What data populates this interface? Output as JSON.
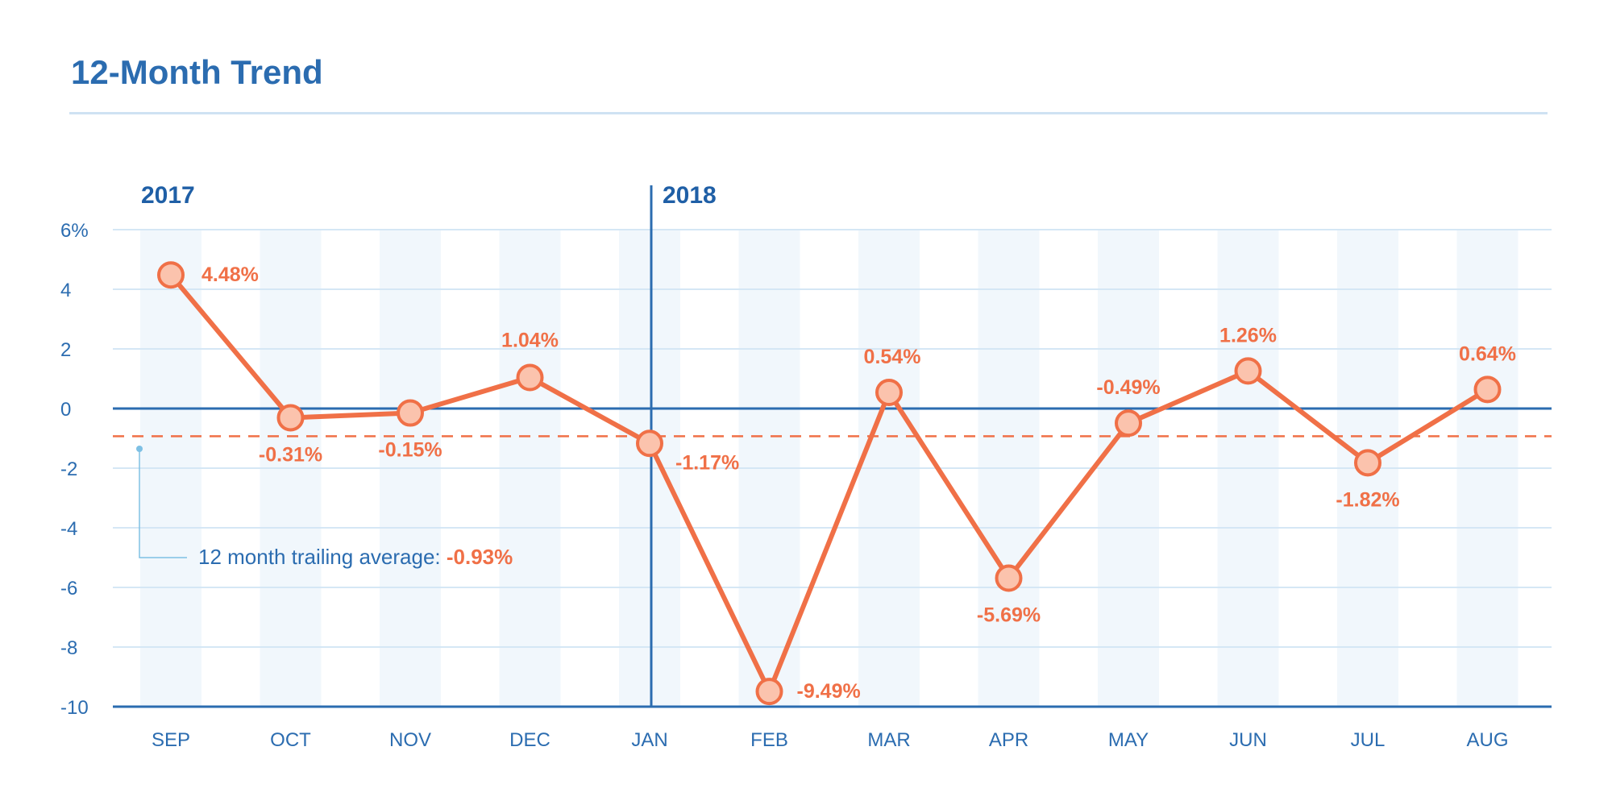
{
  "header": {
    "title": "12-Month Trend"
  },
  "chart_data": {
    "type": "line",
    "title": "12-Month Trend",
    "categories": [
      "SEP",
      "OCT",
      "NOV",
      "DEC",
      "JAN",
      "FEB",
      "MAR",
      "APR",
      "MAY",
      "JUN",
      "JUL",
      "AUG"
    ],
    "series": [
      {
        "values": [
          4.48,
          -0.31,
          -0.15,
          1.04,
          -1.17,
          -9.49,
          0.54,
          -5.69,
          -0.49,
          1.26,
          -1.82,
          0.64
        ]
      }
    ],
    "data_labels": [
      "4.48%",
      "-0.31%",
      "-0.15%",
      "1.04%",
      "-1.17%",
      "-9.49%",
      "0.54%",
      "-5.69%",
      "-0.49%",
      "1.26%",
      "-1.82%",
      "0.64%"
    ],
    "y_ticks": [
      6,
      4,
      2,
      0,
      -2,
      -4,
      -6,
      -8,
      -10
    ],
    "y_tick_labels": [
      "6%",
      "4",
      "2",
      "0",
      "-2",
      "-4",
      "-6",
      "-8",
      "-10"
    ],
    "ylim": [
      -10,
      6
    ],
    "year_labels": [
      {
        "text": "2017",
        "category_index": 0
      },
      {
        "text": "2018",
        "category_index": 4
      }
    ],
    "reference_line": {
      "value": -0.93,
      "label": "12 month trailing average: ",
      "value_label": "-0.93%"
    },
    "grid": true,
    "colors": {
      "line": "#f07047",
      "marker_fill": "#fbc3ad",
      "axis": "#2b6cb0",
      "grid": "#d5e7f5",
      "band": "#f1f7fc",
      "reference_line": "#f07047"
    }
  }
}
